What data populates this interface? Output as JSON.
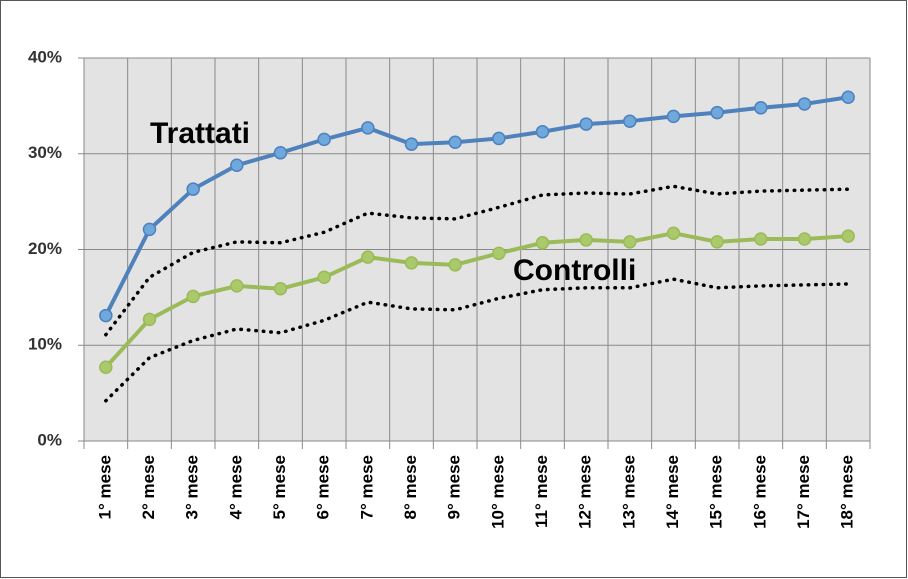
{
  "chart_data": {
    "type": "line",
    "categories": [
      "1° mese",
      "2° mese",
      "3° mese",
      "4° mese",
      "5° mese",
      "6° mese",
      "7° mese",
      "8° mese",
      "9° mese",
      "10° mese",
      "11° mese",
      "12° mese",
      "13° mese",
      "14° mese",
      "15° mese",
      "16° mese",
      "17° mese",
      "18° mese"
    ],
    "series": [
      {
        "name": "Trattati",
        "color": "#4f81bd",
        "marker_color": "#6fa8dc",
        "line_style": "solid",
        "markers": true,
        "values": [
          13.1,
          22.1,
          26.3,
          28.8,
          30.1,
          31.5,
          32.7,
          31.0,
          31.2,
          31.6,
          32.3,
          33.1,
          33.4,
          33.9,
          34.3,
          34.8,
          35.2,
          35.9
        ]
      },
      {
        "name": "Controlli",
        "color": "#9bbb59",
        "marker_color": "#a9c96b",
        "line_style": "solid",
        "markers": true,
        "values": [
          7.7,
          12.7,
          15.1,
          16.2,
          15.9,
          17.1,
          19.2,
          18.6,
          18.4,
          19.6,
          20.7,
          21.0,
          20.8,
          21.7,
          20.8,
          21.1,
          21.1,
          21.4
        ]
      },
      {
        "color": "#000000",
        "line_style": "dotted",
        "markers": false,
        "values": [
          11.1,
          17.1,
          19.7,
          20.8,
          20.7,
          21.8,
          23.8,
          23.3,
          23.2,
          24.4,
          25.7,
          25.9,
          25.8,
          26.6,
          25.8,
          26.1,
          26.2,
          26.3
        ]
      },
      {
        "color": "#000000",
        "line_style": "dotted",
        "markers": false,
        "values": [
          4.2,
          8.7,
          10.5,
          11.7,
          11.3,
          12.6,
          14.5,
          13.8,
          13.7,
          14.9,
          15.8,
          16.0,
          16.0,
          16.9,
          16.0,
          16.2,
          16.3,
          16.4
        ]
      }
    ],
    "ylim": [
      0,
      40
    ],
    "yticks": [
      {
        "value": 0,
        "label": "0%"
      },
      {
        "value": 10,
        "label": "10%"
      },
      {
        "value": 20,
        "label": "20%"
      },
      {
        "value": 30,
        "label": "30%"
      },
      {
        "value": 40,
        "label": "40%"
      }
    ],
    "grid": true
  }
}
